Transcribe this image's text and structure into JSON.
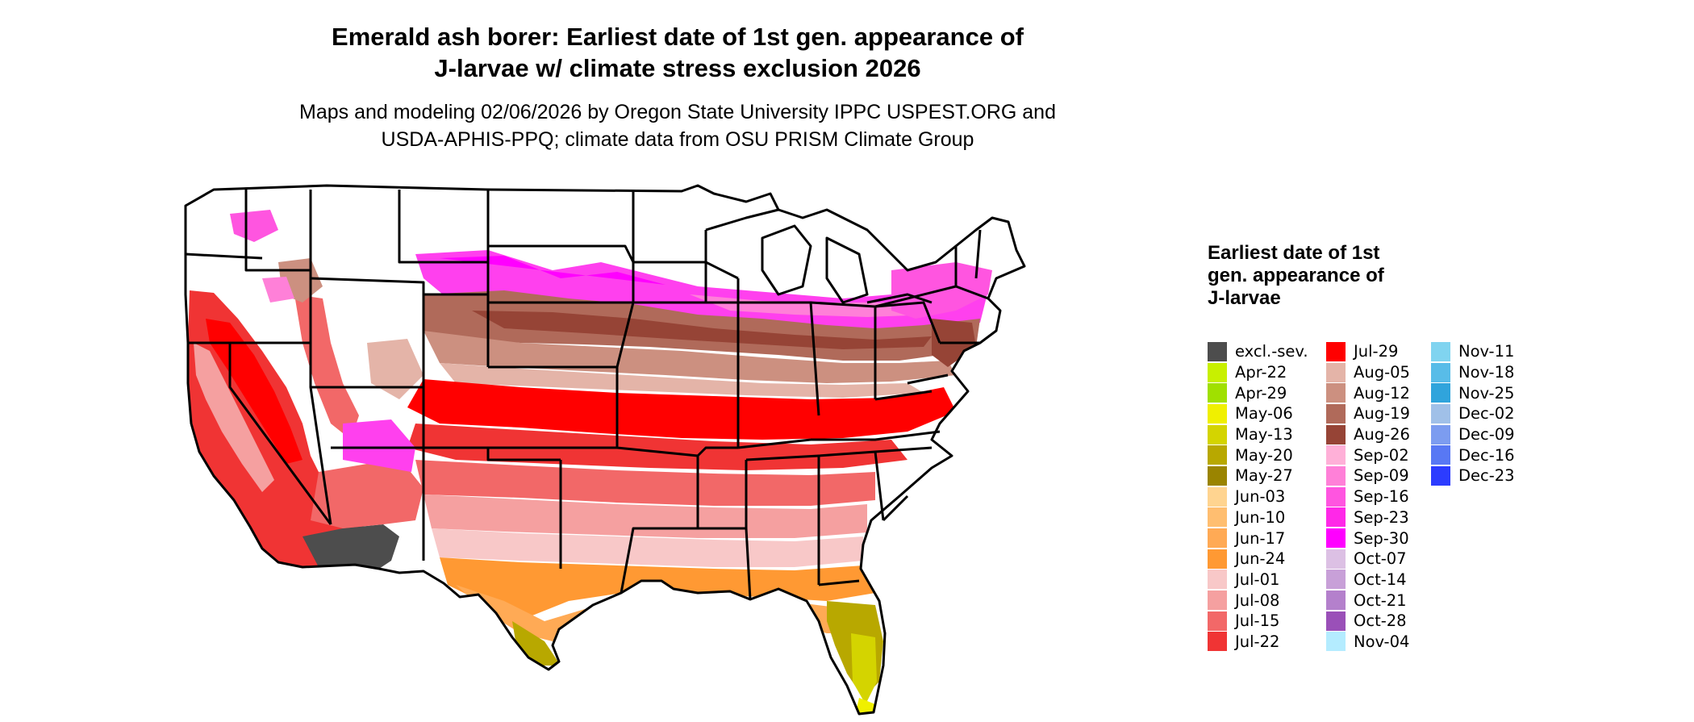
{
  "title_line1": "Emerald ash borer: Earliest date of 1st gen. appearance of",
  "title_line2": "J-larvae w/ climate stress exclusion 2026",
  "subtitle_line1": "Maps and modeling 02/06/2026 by Oregon State University IPPC USPEST.ORG and",
  "subtitle_line2": "USDA-APHIS-PPQ; climate data from OSU PRISM Climate Group",
  "legend": {
    "title": "Earliest date of 1st gen. appearance of J-larvae",
    "columns": [
      [
        {
          "label": "excl.-sev.",
          "color": "#4d4d4d"
        },
        {
          "label": "Apr-22",
          "color": "#c8f000"
        },
        {
          "label": "Apr-29",
          "color": "#a0e000"
        },
        {
          "label": "May-06",
          "color": "#f0f000"
        },
        {
          "label": "May-13",
          "color": "#d4d400"
        },
        {
          "label": "May-20",
          "color": "#b8a800"
        },
        {
          "label": "May-27",
          "color": "#9a8400"
        },
        {
          "label": "Jun-03",
          "color": "#ffd490"
        },
        {
          "label": "Jun-10",
          "color": "#ffbe70"
        },
        {
          "label": "Jun-17",
          "color": "#ffaa55"
        },
        {
          "label": "Jun-24",
          "color": "#ff9933"
        },
        {
          "label": "Jul-01",
          "color": "#f8c8c8"
        },
        {
          "label": "Jul-08",
          "color": "#f5a0a0"
        },
        {
          "label": "Jul-15",
          "color": "#f26868"
        },
        {
          "label": "Jul-22",
          "color": "#f03434"
        }
      ],
      [
        {
          "label": "Jul-29",
          "color": "#ff0000"
        },
        {
          "label": "Aug-05",
          "color": "#e4b4a8"
        },
        {
          "label": "Aug-12",
          "color": "#cc9080"
        },
        {
          "label": "Aug-19",
          "color": "#b06a5a"
        },
        {
          "label": "Aug-26",
          "color": "#964436"
        },
        {
          "label": "Sep-02",
          "color": "#ffb0d8"
        },
        {
          "label": "Sep-09",
          "color": "#ff80d8"
        },
        {
          "label": "Sep-16",
          "color": "#ff55e0"
        },
        {
          "label": "Sep-23",
          "color": "#ff28e8"
        },
        {
          "label": "Sep-30",
          "color": "#ff00ff"
        },
        {
          "label": "Oct-07",
          "color": "#dcc0e4"
        },
        {
          "label": "Oct-14",
          "color": "#c8a0d8"
        },
        {
          "label": "Oct-21",
          "color": "#b480cc"
        },
        {
          "label": "Oct-28",
          "color": "#9a50b8"
        },
        {
          "label": "Nov-04",
          "color": "#b4ecff"
        }
      ],
      [
        {
          "label": "Nov-11",
          "color": "#80d4f0"
        },
        {
          "label": "Nov-18",
          "color": "#58bce8"
        },
        {
          "label": "Nov-25",
          "color": "#30a4dc"
        },
        {
          "label": "Dec-02",
          "color": "#a0c0e8"
        },
        {
          "label": "Dec-09",
          "color": "#7c9cf0"
        },
        {
          "label": "Dec-16",
          "color": "#5878f4"
        },
        {
          "label": "Dec-23",
          "color": "#2c3cff"
        }
      ]
    ]
  }
}
